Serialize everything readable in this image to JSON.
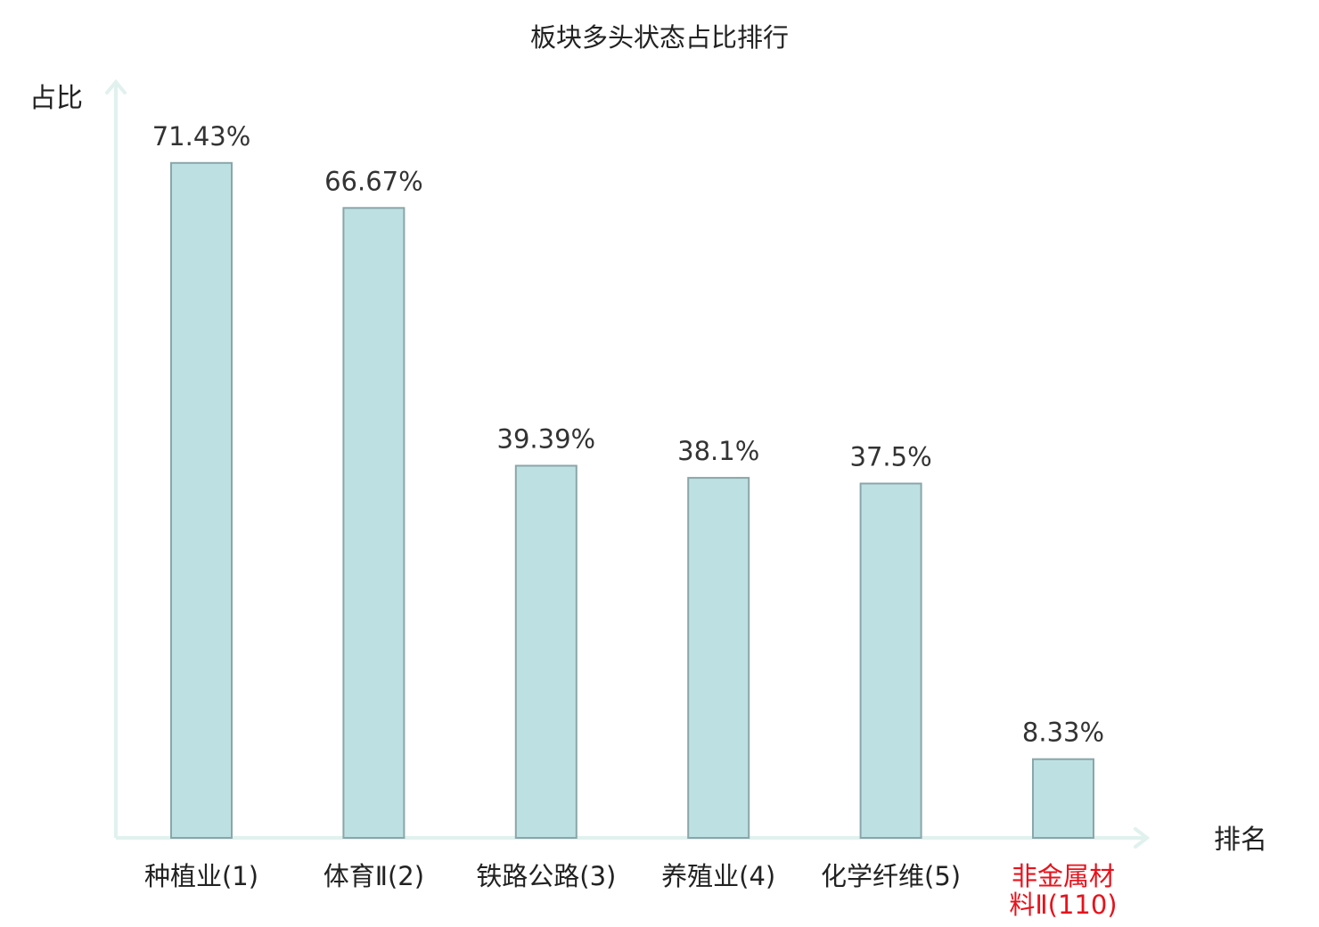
{
  "chart_data": {
    "type": "bar",
    "title": "板块多头状态占比排行",
    "ylabel": "占比",
    "xlabel": "排名",
    "ylim": [
      0,
      80
    ],
    "grid": false,
    "categories": [
      {
        "name": "种植业",
        "rank": "(1)",
        "highlight": false
      },
      {
        "name": "体育Ⅱ",
        "rank": "(2)",
        "highlight": false
      },
      {
        "name": "铁路公路",
        "rank": "(3)",
        "highlight": false
      },
      {
        "name": "养殖业",
        "rank": "(4)",
        "highlight": false
      },
      {
        "name": "化学纤维",
        "rank": "(5)",
        "highlight": false
      },
      {
        "name": "非金属材料Ⅱ",
        "rank": "(110)",
        "highlight": true
      }
    ],
    "values": [
      71.43,
      66.67,
      39.39,
      38.1,
      37.5,
      8.33
    ],
    "value_labels": [
      "71.43%",
      "66.67%",
      "39.39%",
      "38.1%",
      "37.5%",
      "8.33%"
    ],
    "colors": {
      "bar_fill": "#bde0e3",
      "bar_stroke": "#8aa6a8",
      "axis": "#e0f1ee",
      "highlight_text": "#e8121b"
    }
  }
}
